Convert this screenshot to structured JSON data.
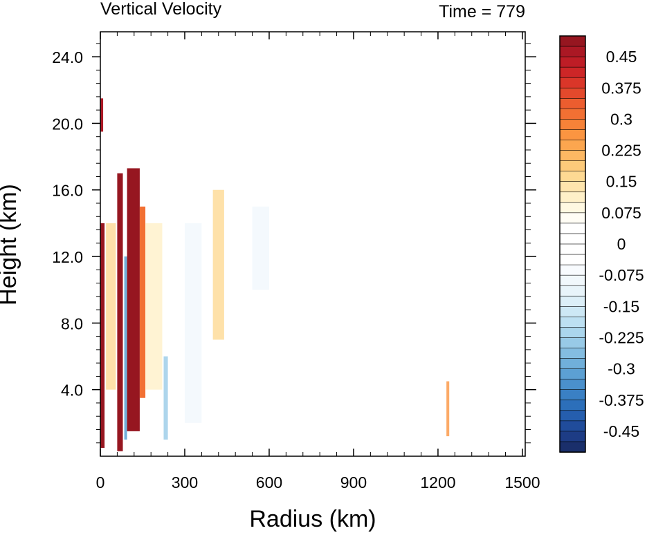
{
  "chart_data": {
    "type": "heatmap",
    "title": "Vertical Velocity",
    "subtitle": "Time = 779",
    "xlabel": "Radius (km)",
    "ylabel": "Height (km)",
    "xlim": [
      0,
      1510
    ],
    "ylim": [
      0,
      25.5
    ],
    "xticks": [
      0,
      300,
      600,
      900,
      1200,
      1500
    ],
    "xtick_labels": [
      "0",
      "300",
      "600",
      "900",
      "1200",
      "1500"
    ],
    "yticks": [
      4,
      8,
      12,
      16,
      20,
      24
    ],
    "ytick_labels": [
      "4.0",
      "8.0",
      "12.0",
      "16.0",
      "20.0",
      "24.0"
    ],
    "colorbar": {
      "levels": [
        -0.5,
        -0.475,
        -0.45,
        -0.425,
        -0.4,
        -0.375,
        -0.35,
        -0.325,
        -0.3,
        -0.275,
        -0.25,
        -0.225,
        -0.2,
        -0.175,
        -0.15,
        -0.125,
        -0.1,
        -0.075,
        -0.05,
        -0.025,
        0,
        0.025,
        0.05,
        0.075,
        0.1,
        0.125,
        0.15,
        0.175,
        0.2,
        0.225,
        0.25,
        0.275,
        0.3,
        0.325,
        0.35,
        0.375,
        0.4,
        0.425,
        0.45,
        0.475,
        0.5
      ],
      "labels": [
        "0.45",
        "0.375",
        "0.3",
        "0.225",
        "0.15",
        "0.075",
        "0",
        "-0.075",
        "-0.15",
        "-0.225",
        "-0.3",
        "-0.375",
        "-0.45"
      ],
      "label_values": [
        0.45,
        0.375,
        0.3,
        0.225,
        0.15,
        0.075,
        0,
        -0.075,
        -0.15,
        -0.225,
        -0.3,
        -0.375,
        -0.45
      ],
      "colors": [
        "#1a2f6b",
        "#1d3c85",
        "#204c9b",
        "#255eae",
        "#2c6fba",
        "#3a80c4",
        "#4a90cc",
        "#5ca0d3",
        "#70afda",
        "#84bde1",
        "#98cae7",
        "#abd6ed",
        "#bde0f2",
        "#cde8f5",
        "#dceff8",
        "#e8f4fa",
        "#f1f8fc",
        "#f8fbfe",
        "#ffffff",
        "#ffffff",
        "#ffffff",
        "#ffffff",
        "#fffdf5",
        "#fff8e1",
        "#fff0c8",
        "#fee5ad",
        "#fed993",
        "#fdca7a",
        "#fdb863",
        "#fca64f",
        "#fb9541",
        "#f78238",
        "#f27033",
        "#ec5d2f",
        "#e4492c",
        "#da3629",
        "#cd2627",
        "#be1d26",
        "#ab1824",
        "#961620"
      ]
    },
    "features": [
      {
        "r_min": 0,
        "r_max": 15,
        "z_min": 0.5,
        "z_max": 14,
        "w": 0.5
      },
      {
        "r_min": 0,
        "r_max": 10,
        "z_min": 19.5,
        "z_max": 21.5,
        "w": 0.45
      },
      {
        "r_min": 60,
        "r_max": 80,
        "z_min": 0.3,
        "z_max": 17,
        "w": 0.5
      },
      {
        "r_min": 85,
        "r_max": 95,
        "z_min": 1,
        "z_max": 12,
        "w": -0.3
      },
      {
        "r_min": 95,
        "r_max": 140,
        "z_min": 1.5,
        "z_max": 17.3,
        "w": 0.5
      },
      {
        "r_min": 140,
        "r_max": 160,
        "z_min": 3.5,
        "z_max": 15,
        "w": 0.3
      },
      {
        "r_min": 20,
        "r_max": 55,
        "z_min": 4,
        "z_max": 14,
        "w": 0.15
      },
      {
        "r_min": 160,
        "r_max": 220,
        "z_min": 4,
        "z_max": 14,
        "w": 0.1
      },
      {
        "r_min": 225,
        "r_max": 240,
        "z_min": 1,
        "z_max": 6,
        "w": -0.25
      },
      {
        "r_min": 300,
        "r_max": 360,
        "z_min": 2,
        "z_max": 14,
        "w": -0.08
      },
      {
        "r_min": 400,
        "r_max": 440,
        "z_min": 7,
        "z_max": 16,
        "w": 0.15
      },
      {
        "r_min": 540,
        "r_max": 600,
        "z_min": 10,
        "z_max": 15,
        "w": -0.1
      },
      {
        "r_min": 1230,
        "r_max": 1240,
        "z_min": 1.2,
        "z_max": 4.5,
        "w": 0.25
      }
    ]
  }
}
